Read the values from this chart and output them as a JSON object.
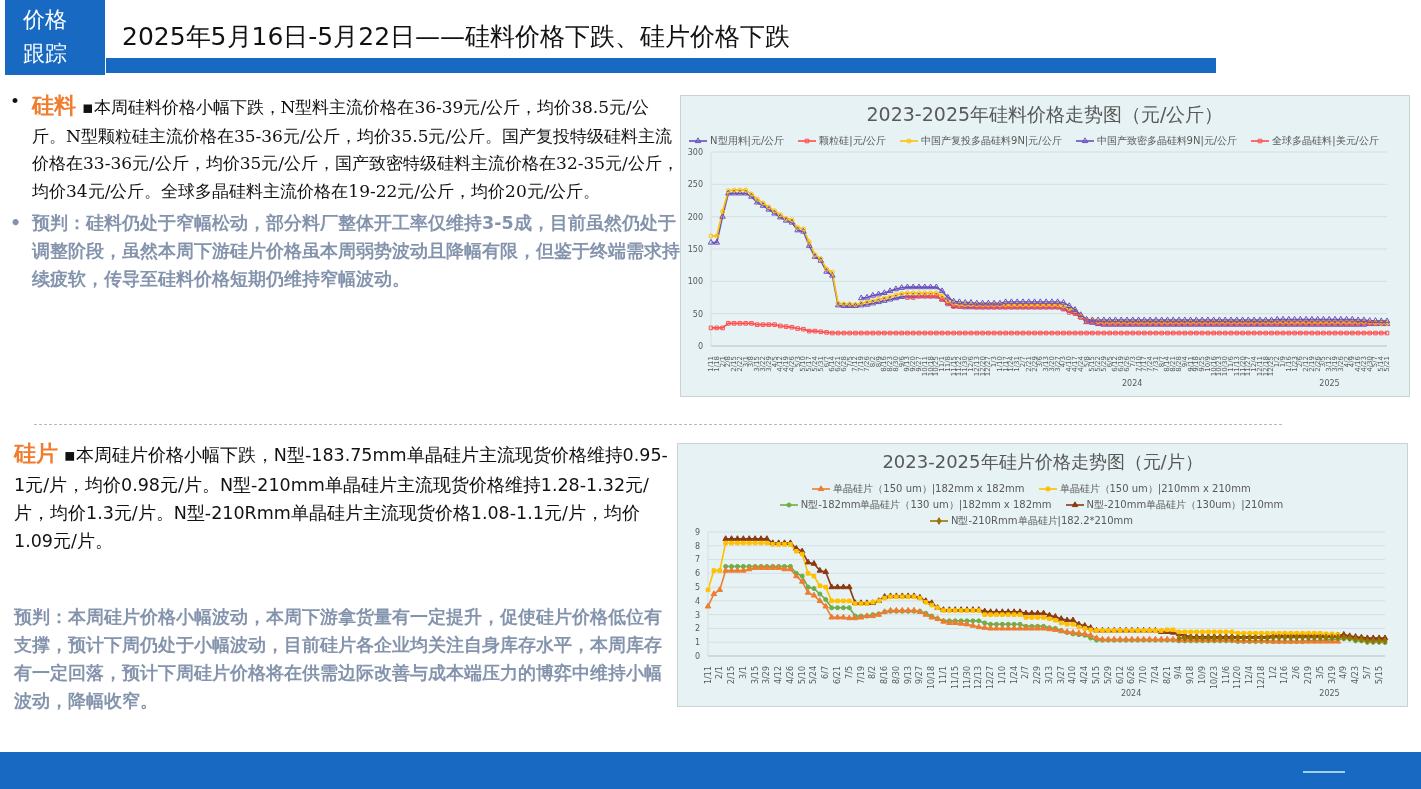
{
  "chart_data": [
    {
      "type": "other",
      "title": "2025年5月16日-5月22日——硅料价格下跌、硅片价格下跌",
      "annotations": [
        "价格跟踪"
      ]
    },
    {
      "type": "other",
      "title": "硅料",
      "annotations": [
        "•",
        "•",
        "▪本周硅料价格小幅下跌，N型料主流价格在36-39元/公斤，均价38.5元/公斤。N型颗粒硅主流价格在35-36元/公斤，均价35.5元/公斤。国产复投特级硅料主流价格在33-36元/公斤，均价35元/公斤，国产致密特级硅料主流价格在32-35元/公斤，均价34元/公斤。全球多晶硅料主流价格在19-22元/公斤，均价20元/公斤。",
        "预判：硅料仍处于窄幅松动，部分料厂整体开工率仅维持3-5成，目前虽然仍处于调整阶段，虽然本周下游硅片价格虽本周弱势波动且降幅有限，但鉴于终端需求持续疲软，传导至硅料价格短期仍维持窄幅波动。"
      ]
    },
    {
      "type": "line",
      "title": "2023-2025年硅料价格走势图（元/公斤）",
      "legend": "top",
      "grid": "y",
      "ylim": [
        0,
        300
      ],
      "yticks": [
        0,
        50,
        100,
        150,
        200,
        250,
        300
      ],
      "categories": [
        "1/11",
        "1/18",
        "2/1",
        "2/8",
        "2/15",
        "2/22",
        "3/1",
        "3/8",
        "3/15",
        "3/22",
        "3/29",
        "4/5",
        "4/12",
        "4/19",
        "4/26",
        "5/3",
        "5/10",
        "5/17",
        "5/24",
        "5/31",
        "6/7",
        "6/14",
        "6/21",
        "6/28",
        "7/5",
        "7/12",
        "7/19",
        "7/26",
        "8/2",
        "8/9",
        "8/16",
        "8/23",
        "8/30",
        "9/6",
        "9/13",
        "9/20",
        "9/27",
        "10/11",
        "10/18",
        "10/25",
        "11/1",
        "11/8",
        "11/15",
        "11/22",
        "11/30",
        "12/6",
        "12/13",
        "12/20",
        "12/27",
        "1/3",
        "1/10",
        "1/17",
        "1/24",
        "1/31",
        "2/7",
        "2/21",
        "2/29",
        "3/6",
        "3/13",
        "3/20",
        "3/27",
        "4/3",
        "4/10",
        "4/17",
        "4/24",
        "5/8",
        "5/15",
        "5/22",
        "5/29",
        "6/5",
        "6/12",
        "6/19",
        "6/26",
        "7/3",
        "7/10",
        "7/17",
        "7/24",
        "7/31",
        "8/7",
        "8/14",
        "8/21",
        "8/28",
        "9/4",
        "9/11",
        "9/18",
        "9/25",
        "10/9",
        "10/16",
        "10/23",
        "10/30",
        "11/6",
        "11/13",
        "11/20",
        "11/27",
        "12/4",
        "12/11",
        "12/18",
        "12/25",
        "1/2",
        "1/9",
        "1/16",
        "1/23",
        "2/6",
        "2/12",
        "2/19",
        "2/26",
        "3/5",
        "3/12",
        "3/19",
        "3/26",
        "4/2",
        "4/9",
        "4/16",
        "4/23",
        "4/30",
        "5/7",
        "5/14",
        "5/21"
      ],
      "annotations": [
        "2024",
        "2025"
      ],
      "series": [
        {
          "name": "N型用料|元/公斤",
          "color": "#6a4fbd",
          "marker": "triangle",
          "values": [
            null,
            null,
            null,
            null,
            null,
            null,
            null,
            null,
            null,
            null,
            null,
            null,
            null,
            null,
            null,
            null,
            null,
            null,
            null,
            null,
            null,
            null,
            null,
            null,
            null,
            null,
            74,
            75,
            78,
            80,
            82,
            85,
            88,
            90,
            91,
            91,
            91,
            91,
            91,
            91,
            85,
            75,
            69,
            68,
            67,
            67,
            66,
            66,
            66,
            66,
            66,
            68,
            68,
            68,
            68,
            68,
            68,
            68,
            68,
            68,
            68,
            67,
            62,
            56,
            48,
            41,
            40,
            40,
            40,
            40,
            40,
            40,
            40,
            40,
            40,
            40,
            40,
            40,
            40,
            40,
            40,
            40,
            40,
            40,
            40,
            40,
            40,
            40,
            40,
            40,
            40,
            40,
            40,
            40,
            40,
            40,
            40,
            40,
            41,
            41,
            41,
            41,
            41,
            41,
            41,
            41,
            41,
            41,
            41,
            41,
            41,
            41,
            40,
            40,
            39,
            39,
            38.5,
            38.5
          ]
        },
        {
          "name": "颗粒硅|元/公斤",
          "color": "#ff4d4f",
          "marker": "square",
          "values": [
            null,
            null,
            null,
            null,
            null,
            null,
            null,
            null,
            null,
            null,
            null,
            null,
            null,
            null,
            null,
            null,
            null,
            null,
            null,
            null,
            null,
            null,
            null,
            null,
            null,
            null,
            null,
            null,
            null,
            null,
            null,
            null,
            null,
            null,
            75,
            75,
            77,
            77,
            77,
            77,
            72,
            65,
            61,
            61,
            61,
            61,
            60,
            60,
            60,
            60,
            60,
            60,
            60,
            60,
            60,
            60,
            60,
            60,
            60,
            60,
            60,
            57,
            52,
            50,
            44,
            38,
            38,
            36,
            35,
            35,
            35,
            35,
            35,
            35,
            35,
            35,
            35,
            35,
            35,
            35,
            35,
            35,
            35,
            35,
            35,
            35,
            35,
            35,
            35,
            35,
            35,
            35,
            35,
            35,
            35,
            35,
            35,
            35,
            35,
            35,
            35,
            35,
            35,
            35,
            35,
            35,
            35,
            35,
            35,
            35,
            35,
            35,
            35,
            35,
            35,
            35,
            35.5,
            35.5
          ]
        },
        {
          "name": "中国产复投多晶硅料9N|元/公斤",
          "color": "#ffc000",
          "marker": "circle",
          "values": [
            170,
            170,
            208,
            240,
            241,
            241,
            241,
            235,
            227,
            221,
            215,
            209,
            203,
            197,
            195,
            183,
            181,
            161,
            141,
            135,
            119,
            114,
            66,
            65,
            65,
            64,
            66,
            68,
            70,
            72,
            74,
            76,
            79,
            81,
            82,
            82,
            82,
            82,
            82,
            82,
            77,
            70,
            66,
            65,
            64,
            64,
            64,
            64,
            64,
            64,
            64,
            64,
            64,
            64,
            64,
            64,
            64,
            64,
            64,
            64,
            64,
            62,
            58,
            55,
            46,
            41,
            40,
            38,
            37,
            37,
            37,
            37,
            37,
            37,
            37,
            37,
            37,
            37,
            37,
            37,
            37,
            37,
            37,
            37,
            37,
            37,
            37,
            37,
            37,
            37,
            37,
            37,
            37,
            37,
            37,
            37,
            37,
            37,
            37,
            37,
            37,
            37,
            37,
            37,
            37,
            37,
            37,
            37,
            37,
            37,
            37,
            37,
            37,
            37,
            37,
            36,
            35,
            35
          ]
        },
        {
          "name": "中国产致密多晶硅料9N|元/公斤",
          "color": "#6a4fbd",
          "marker": "triangle",
          "values": [
            160,
            160,
            200,
            236,
            236,
            236,
            236,
            231,
            222,
            217,
            211,
            205,
            199,
            194,
            191,
            179,
            177,
            155,
            138,
            132,
            115,
            109,
            63,
            62,
            62,
            62,
            63,
            64,
            66,
            68,
            70,
            72,
            74,
            76,
            77,
            77,
            77,
            77,
            77,
            77,
            72,
            66,
            62,
            61,
            60,
            60,
            60,
            60,
            60,
            60,
            60,
            60,
            60,
            60,
            60,
            60,
            60,
            60,
            60,
            60,
            60,
            58,
            55,
            52,
            45,
            37,
            36,
            34,
            33,
            33,
            33,
            33,
            33,
            33,
            33,
            33,
            33,
            33,
            33,
            33,
            33,
            33,
            33,
            33,
            33,
            33,
            33,
            33,
            33,
            33,
            33,
            33,
            33,
            33,
            33,
            33,
            33,
            33,
            33,
            33,
            33,
            33,
            33,
            33,
            33,
            33,
            33,
            33,
            33,
            33,
            33,
            33,
            33,
            33,
            34,
            34,
            34,
            34
          ]
        },
        {
          "name": "全球多晶硅料|美元/公斤",
          "color": "#ff4d4f",
          "marker": "square",
          "values": [
            28,
            28,
            28,
            35,
            35,
            35,
            35,
            35,
            33,
            33,
            33,
            33,
            31,
            30,
            29,
            27,
            26,
            23,
            23,
            22,
            21,
            20,
            20,
            20,
            20,
            20,
            20,
            20,
            20,
            20,
            20,
            20,
            20,
            20,
            20,
            20,
            20,
            20,
            20,
            20,
            20,
            20,
            20,
            20,
            20,
            20,
            20,
            20,
            20,
            20,
            20,
            20,
            20,
            20,
            20,
            20,
            20,
            20,
            20,
            20,
            20,
            20,
            20,
            20,
            20,
            20,
            20,
            20,
            20,
            20,
            20,
            20,
            20,
            20,
            20,
            20,
            20,
            20,
            20,
            20,
            20,
            20,
            20,
            20,
            20,
            20,
            20,
            20,
            20,
            20,
            20,
            20,
            20,
            20,
            20,
            20,
            20,
            20,
            20,
            20,
            20,
            20,
            20,
            20,
            20,
            20,
            20,
            20,
            20,
            20,
            20,
            20,
            20,
            20,
            20,
            20,
            20,
            20
          ]
        }
      ]
    },
    {
      "type": "other",
      "title": "硅片",
      "annotations": [
        "▪本周硅片价格小幅下跌，N型-183.75mm单晶硅片主流现货价格维持0.95-1元/片，均价0.98元/片。N型-210mm单晶硅片主流现货价格维持1.28-1.32元/片，均价1.3元/片。N型-210Rmm单晶硅片主流现货价格1.08-1.1元/片，均价1.09元/片。",
        "预判：本周硅片价格小幅波动，本周下游拿货量有一定提升，促使硅片价格低位有支撑，预计下周仍处于小幅波动，目前硅片各企业均关注自身库存水平，本周库存有一定回落，预计下周硅片价格将在供需边际改善与成本端压力的博弈中维持小幅波动，降幅收窄。"
      ]
    },
    {
      "type": "line",
      "title": "2023-2025年硅片价格走势图（元/片）",
      "legend": "top",
      "grid": "y",
      "ylim": [
        0,
        9
      ],
      "yticks": [
        0,
        1,
        2,
        3,
        4,
        5,
        6,
        7,
        8,
        9
      ],
      "categories": [
        "1/11",
        null,
        "2/1",
        null,
        "2/15",
        null,
        "3/1",
        null,
        "3/15",
        null,
        "3/29",
        null,
        "4/12",
        null,
        "4/26",
        null,
        "5/10",
        null,
        "5/24",
        null,
        "6/7",
        null,
        "6/21",
        null,
        "7/5",
        null,
        "7/19",
        null,
        "8/2",
        null,
        "8/16",
        null,
        "8/30",
        null,
        "9/13",
        null,
        "9/27",
        null,
        "10/18",
        null,
        "11/1",
        null,
        "11/15",
        null,
        "11/30",
        null,
        "12/13",
        null,
        "12/27",
        null,
        "1/10",
        null,
        "1/24",
        null,
        "2/7",
        null,
        "2/29",
        null,
        "3/13",
        null,
        "3/27",
        null,
        "4/10",
        null,
        "4/24",
        null,
        "5/15",
        null,
        "5/29",
        null,
        "6/12",
        null,
        "6/26",
        null,
        "7/10",
        null,
        "7/24",
        null,
        "8/21",
        null,
        "9/4",
        null,
        "9/18",
        null,
        "10/9",
        null,
        "10/23",
        null,
        "11/6",
        null,
        "11/20",
        null,
        "12/4",
        null,
        "12/18",
        null,
        "1/2",
        null,
        "1/16",
        null,
        "2/6",
        null,
        "2/19",
        null,
        "3/5",
        null,
        "3/19",
        null,
        "4/9",
        null,
        "4/23",
        null,
        "5/7",
        null,
        "5/15",
        null
      ],
      "annotations": [
        "2024",
        "2025"
      ],
      "series": [
        {
          "name": "单晶硅片（150 um）|182mm x 182mm",
          "color": "#ed7d31",
          "marker": "triangle",
          "values": [
            3.6,
            4.5,
            4.8,
            6.2,
            6.2,
            6.2,
            6.2,
            6.3,
            6.4,
            6.4,
            6.4,
            6.4,
            6.4,
            6.3,
            6.3,
            5.8,
            5.4,
            4.6,
            4.4,
            4.0,
            3.6,
            2.8,
            2.8,
            2.8,
            2.75,
            2.75,
            2.8,
            2.9,
            2.9,
            3.0,
            3.2,
            3.3,
            3.3,
            3.3,
            3.3,
            3.3,
            3.2,
            3.0,
            2.8,
            2.7,
            2.5,
            2.4,
            2.4,
            2.35,
            2.3,
            2.2,
            2.1,
            2.05,
            2.0,
            2.0,
            2.0,
            2.0,
            2.0,
            2.0,
            2.0,
            2.0,
            2.0,
            2.0,
            1.95,
            1.9,
            1.8,
            1.75,
            1.7,
            1.65,
            1.6,
            1.5,
            1.3,
            1.2,
            1.2,
            1.2,
            1.2,
            1.2,
            1.2,
            1.2,
            1.2,
            1.2,
            1.2,
            1.2,
            1.2,
            1.2,
            1.15,
            1.15,
            1.15,
            1.15,
            1.15,
            1.15,
            1.15,
            1.15,
            1.15,
            1.15,
            1.1,
            1.1,
            1.1,
            1.1,
            1.1,
            1.1,
            1.05,
            1.05,
            1.05,
            1.05,
            1.05,
            1.05,
            1.05,
            1.05,
            1.05,
            1.05,
            1.05,
            1.05,
            null,
            null,
            null,
            null,
            null,
            null,
            null,
            null
          ]
        },
        {
          "name": "单晶硅片（150 um）|210mm x 210mm",
          "color": "#ffc000",
          "marker": "square",
          "values": [
            4.8,
            6.2,
            6.2,
            8.2,
            8.2,
            8.2,
            8.2,
            8.2,
            8.2,
            8.2,
            8.2,
            8.1,
            8.1,
            8.1,
            8.1,
            7.6,
            7.4,
            6.0,
            5.8,
            5.1,
            5.0,
            4.0,
            4.0,
            4.0,
            4.0,
            3.8,
            3.8,
            3.8,
            3.9,
            4.0,
            4.2,
            4.3,
            4.3,
            4.3,
            4.3,
            4.3,
            4.2,
            3.9,
            3.7,
            3.5,
            3.3,
            3.3,
            3.3,
            3.3,
            3.3,
            3.3,
            3.3,
            3.0,
            3.0,
            3.0,
            3.0,
            3.0,
            3.0,
            3.0,
            2.8,
            2.8,
            2.8,
            2.8,
            2.7,
            2.6,
            2.4,
            2.3,
            2.3,
            2.1,
            2.0,
            1.9,
            1.85,
            1.85,
            1.85,
            1.85,
            1.85,
            1.85,
            1.85,
            1.85,
            1.85,
            1.85,
            1.85,
            1.85,
            1.9,
            1.9,
            1.75,
            1.75,
            1.75,
            1.75,
            1.75,
            1.75,
            1.75,
            1.75,
            1.75,
            1.75,
            1.65,
            1.65,
            1.65,
            1.65,
            1.65,
            1.65,
            1.65,
            1.65,
            1.65,
            1.65,
            1.65,
            1.65,
            1.65,
            1.65,
            1.65,
            1.6,
            1.6,
            1.55,
            null,
            null,
            null,
            null,
            null,
            null,
            null,
            null
          ]
        },
        {
          "name": "N型-182mm单晶硅片（130 um）|182mm x 182mm",
          "color": "#70ad47",
          "marker": "circle",
          "values": [
            null,
            null,
            null,
            6.5,
            6.5,
            6.5,
            6.5,
            6.5,
            6.5,
            6.5,
            6.5,
            6.5,
            6.5,
            6.5,
            6.5,
            6.0,
            5.8,
            5.0,
            4.9,
            4.5,
            4.1,
            3.5,
            3.5,
            3.5,
            3.5,
            2.9,
            2.9,
            2.9,
            3.0,
            3.05,
            3.2,
            3.25,
            3.25,
            3.25,
            3.25,
            3.25,
            3.25,
            3.1,
            2.9,
            2.7,
            2.55,
            2.55,
            2.55,
            2.55,
            2.55,
            2.55,
            2.55,
            2.4,
            2.3,
            2.3,
            2.3,
            2.3,
            2.3,
            2.3,
            2.15,
            2.15,
            2.15,
            2.15,
            2.05,
            2.0,
            1.85,
            1.7,
            1.6,
            1.55,
            1.5,
            1.3,
            1.15,
            1.15,
            1.15,
            1.15,
            1.15,
            1.15,
            1.15,
            1.15,
            1.15,
            1.15,
            1.15,
            1.15,
            1.15,
            1.15,
            1.1,
            1.1,
            1.1,
            1.1,
            1.1,
            1.1,
            1.1,
            1.1,
            1.1,
            1.1,
            1.05,
            1.05,
            1.05,
            1.05,
            1.05,
            1.05,
            1.05,
            1.05,
            1.05,
            1.05,
            1.05,
            1.05,
            1.1,
            1.1,
            1.1,
            1.15,
            1.2,
            1.2,
            1.25,
            1.25,
            1.1,
            1.1,
            1.0,
            1.0,
            1.0,
            0.98
          ]
        },
        {
          "name": "N型-210mm单晶硅片（130um）|210mm",
          "color": "#8b3a0f",
          "marker": "triangle",
          "values": [
            null,
            null,
            null,
            8.5,
            8.5,
            8.5,
            8.5,
            8.5,
            8.5,
            8.5,
            8.5,
            8.2,
            8.2,
            8.2,
            8.2,
            7.8,
            7.6,
            6.8,
            6.7,
            6.2,
            6.1,
            5.0,
            5.0,
            5.0,
            5.0,
            3.85,
            3.85,
            3.85,
            3.85,
            4.0,
            4.3,
            4.35,
            4.35,
            4.35,
            4.35,
            4.35,
            4.25,
            4.0,
            3.85,
            3.5,
            3.35,
            3.35,
            3.35,
            3.35,
            3.35,
            3.35,
            3.35,
            3.25,
            3.2,
            3.2,
            3.2,
            3.2,
            3.2,
            3.2,
            3.1,
            3.1,
            3.1,
            3.1,
            2.95,
            2.85,
            2.7,
            2.6,
            2.6,
            2.3,
            2.2,
            2.05,
            1.85,
            1.85,
            1.85,
            1.85,
            1.85,
            1.85,
            1.85,
            1.85,
            1.85,
            1.85,
            1.85,
            1.75,
            1.75,
            1.7,
            1.6,
            1.5,
            1.4,
            1.4,
            1.4,
            1.4,
            1.4,
            1.4,
            1.4,
            1.4,
            1.4,
            1.4,
            1.4,
            1.4,
            1.4,
            1.4,
            1.5,
            1.5,
            1.5,
            1.5,
            1.5,
            1.5,
            1.5,
            1.5,
            1.5,
            1.5,
            1.5,
            1.5,
            1.55,
            1.45,
            1.4,
            1.35,
            1.3,
            1.3,
            1.3,
            1.3
          ]
        },
        {
          "name": "N型-210Rmm单晶硅片|182.2*210mm",
          "color": "#997300",
          "marker": "diamond",
          "values": [
            null,
            null,
            null,
            null,
            null,
            null,
            null,
            null,
            null,
            null,
            null,
            null,
            null,
            null,
            null,
            null,
            null,
            null,
            null,
            null,
            null,
            null,
            null,
            null,
            null,
            null,
            null,
            null,
            null,
            null,
            null,
            null,
            null,
            null,
            null,
            null,
            null,
            null,
            null,
            null,
            null,
            null,
            null,
            null,
            null,
            null,
            null,
            null,
            null,
            null,
            null,
            null,
            null,
            null,
            null,
            null,
            null,
            null,
            null,
            null,
            null,
            null,
            null,
            null,
            null,
            null,
            null,
            null,
            null,
            null,
            null,
            null,
            null,
            null,
            null,
            null,
            null,
            null,
            null,
            null,
            1.3,
            1.3,
            1.3,
            1.3,
            1.3,
            1.3,
            1.3,
            1.3,
            1.3,
            1.3,
            1.3,
            1.3,
            1.3,
            1.3,
            1.3,
            1.3,
            1.35,
            1.35,
            1.35,
            1.35,
            1.35,
            1.35,
            1.35,
            1.35,
            1.35,
            1.35,
            1.35,
            1.35,
            1.35,
            1.3,
            1.25,
            1.2,
            1.1,
            1.1,
            1.1,
            1.1
          ]
        }
      ]
    }
  ]
}
